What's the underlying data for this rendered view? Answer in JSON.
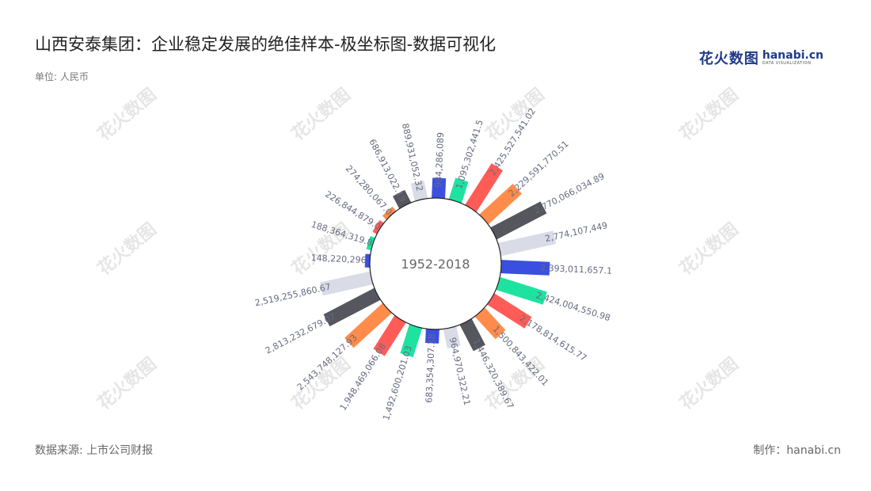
{
  "title": "山西安泰集团：企业稳定发展的绝佳样本-极坐标图-数据可视化",
  "unit": "单位: 人民币",
  "source": "数据来源: 上市公司财报",
  "maker": "制作：hanabi.cn",
  "logo": {
    "cn": "花火数图",
    "en": "hanabi.cn",
    "sub": "DATA VISUALIZATION"
  },
  "watermark": "花火数图",
  "colors": [
    "#3a4fe0",
    "#1ee3a0",
    "#ff5c57",
    "#ff8c4a",
    "#55565e",
    "#d9dce6"
  ],
  "chart_data": {
    "type": "bar",
    "subtype": "polar-radial-bar",
    "center_label": "1952-2018",
    "values": [
      984286089,
      1095302441.5,
      2425527541.02,
      2229591770.51,
      2770066034.89,
      2774107449,
      2393011657.1,
      2424004550.98,
      2178814615.77,
      1500843422.01,
      1446320389.67,
      964970322.21,
      683354307.38,
      1492600201.03,
      1948469066.08,
      2543748127.93,
      2813232679.07,
      2519255860.67,
      148220296.1,
      188364319.88,
      226844879.06,
      274280067.08,
      686913022.19,
      889931052.32
    ],
    "labels": [
      "984,286,089",
      "1,095,302,441.5",
      "2,425,527,541.02",
      "2,229,591,770.51",
      "2,770,066,034.89",
      "2,774,107,449",
      "2,393,011,657.1",
      "2,424,004,550.98",
      "2,178,814,615.77",
      "1,500,843,422.01",
      "1,446,320,389.67",
      "964,970,322.21",
      "683,354,307.38",
      "1,492,600,201.03",
      "1,948,469,066.08",
      "2,543,748,127.93",
      "2,813,232,679.07",
      "2,519,255,860.67",
      "148,220,296.1",
      "188,364,319.88",
      "226,844,879.06",
      "274,280,067.08",
      "686,913,022.19",
      "889,931,052.32"
    ]
  }
}
